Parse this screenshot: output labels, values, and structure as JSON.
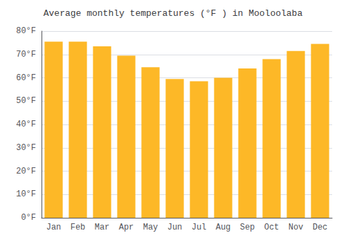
{
  "chart_data": {
    "type": "bar",
    "title": "Average monthly temperatures (°F ) in Mooloolaba",
    "categories": [
      "Jan",
      "Feb",
      "Mar",
      "Apr",
      "May",
      "Jun",
      "Jul",
      "Aug",
      "Sep",
      "Oct",
      "Nov",
      "Dec"
    ],
    "values": [
      75.5,
      75.5,
      73.5,
      69.5,
      64.5,
      59.5,
      58.5,
      60.0,
      64.0,
      68.0,
      71.5,
      74.5
    ],
    "color": "#FDB827",
    "ylim": [
      0,
      80
    ],
    "yticks": [
      {
        "value": 0,
        "label": "0°F"
      },
      {
        "value": 10,
        "label": "10°F"
      },
      {
        "value": 20,
        "label": "20°F"
      },
      {
        "value": 30,
        "label": "30°F"
      },
      {
        "value": 40,
        "label": "40°F"
      },
      {
        "value": 50,
        "label": "50°F"
      },
      {
        "value": 60,
        "label": "60°F"
      },
      {
        "value": 70,
        "label": "70°F"
      },
      {
        "value": 80,
        "label": "80°F"
      }
    ],
    "grid": true
  }
}
